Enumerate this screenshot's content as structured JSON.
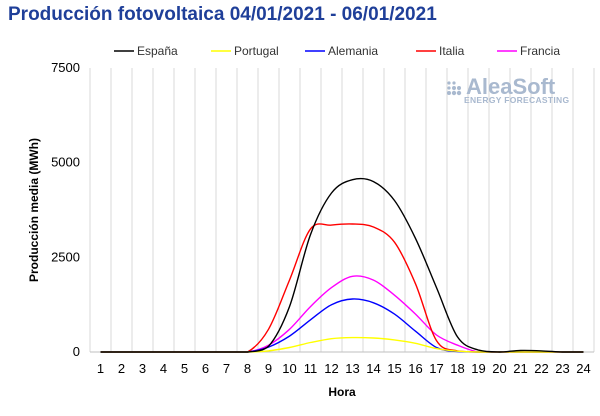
{
  "chart_data": {
    "type": "line",
    "title": "Producción fotovoltaica 04/01/2021 - 06/01/2021",
    "xlabel": "Hora",
    "ylabel": "Producción media (MWh)",
    "x": [
      1,
      2,
      3,
      4,
      5,
      6,
      7,
      8,
      9,
      10,
      11,
      12,
      13,
      14,
      15,
      16,
      17,
      18,
      19,
      20,
      21,
      22,
      23,
      24
    ],
    "x_ticks": [
      "1",
      "2",
      "3",
      "4",
      "5",
      "6",
      "7",
      "8",
      "9",
      "10",
      "11",
      "12",
      "13",
      "14",
      "15",
      "16",
      "17",
      "18",
      "19",
      "20",
      "21",
      "22",
      "23",
      "24"
    ],
    "ylim": [
      0,
      7500
    ],
    "y_ticks": [
      0,
      2500,
      5000,
      7500
    ],
    "y_tick_labels": [
      "0",
      "2500",
      "5000",
      "7500"
    ],
    "grid": "vertical",
    "legend_position": "top",
    "series": [
      {
        "name": "España",
        "color": "#000000",
        "values": [
          0,
          0,
          0,
          0,
          0,
          0,
          0,
          0,
          150,
          1200,
          3100,
          4200,
          4550,
          4500,
          4000,
          3000,
          1700,
          400,
          50,
          0,
          40,
          30,
          0,
          0
        ]
      },
      {
        "name": "Portugal",
        "color": "#ffff00",
        "values": [
          0,
          0,
          0,
          0,
          0,
          0,
          0,
          0,
          30,
          120,
          250,
          350,
          380,
          370,
          320,
          230,
          90,
          20,
          0,
          0,
          0,
          0,
          0,
          0
        ]
      },
      {
        "name": "Alemania",
        "color": "#0000ff",
        "values": [
          0,
          0,
          0,
          0,
          0,
          0,
          0,
          0,
          130,
          420,
          850,
          1250,
          1400,
          1300,
          1000,
          550,
          120,
          10,
          0,
          0,
          0,
          0,
          0,
          0
        ]
      },
      {
        "name": "Italia",
        "color": "#ff0000",
        "values": [
          0,
          0,
          0,
          0,
          0,
          0,
          0,
          0,
          600,
          1900,
          3250,
          3350,
          3380,
          3300,
          2900,
          1800,
          300,
          30,
          0,
          0,
          0,
          0,
          0,
          0
        ]
      },
      {
        "name": "Francia",
        "color": "#ff00ff",
        "values": [
          0,
          0,
          0,
          0,
          0,
          0,
          0,
          0,
          180,
          600,
          1200,
          1700,
          2000,
          1900,
          1500,
          1000,
          450,
          180,
          0,
          0,
          0,
          0,
          0,
          0
        ]
      }
    ]
  },
  "logo": {
    "name": "AleaSoft",
    "tagline": "ENERGY FORECASTING"
  }
}
